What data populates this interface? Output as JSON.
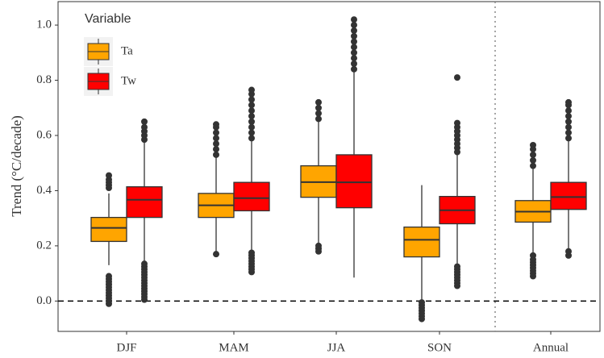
{
  "chart_data": {
    "type": "boxplot",
    "y_label": "Trend (°C/decade)",
    "categories": [
      "DJF",
      "MAM",
      "JJA",
      "SON",
      "Annual"
    ],
    "ylim": [
      -0.11,
      1.085
    ],
    "yticks": [
      {
        "value": 0,
        "label": "0.0"
      },
      0.2,
      0.4,
      0.6,
      0.8,
      {
        "value": 1,
        "label": "1.0"
      }
    ],
    "hline": 0,
    "legend_title": "Variable",
    "legend_position": "top-left",
    "series": [
      {
        "name": "Ta",
        "color": "#ffa500",
        "whislo": [
          0.13,
          0.18,
          0.21,
          0.0,
          0.17
        ],
        "q1": [
          0.216,
          0.303,
          0.376,
          0.16,
          0.286
        ],
        "med": [
          0.265,
          0.347,
          0.431,
          0.222,
          0.324
        ],
        "q3": [
          0.303,
          0.39,
          0.49,
          0.268,
          0.364
        ],
        "whishi": [
          0.39,
          0.52,
          0.65,
          0.42,
          0.48
        ],
        "outliers": [
          [
            -0.01,
            0.0,
            0.01,
            0.02,
            0.03,
            0.04,
            0.05,
            0.06,
            0.07,
            0.08,
            0.09,
            0.41,
            0.42,
            0.43,
            0.44,
            0.455
          ],
          [
            0.17,
            0.53,
            0.55,
            0.57,
            0.59,
            0.61,
            0.63,
            0.64
          ],
          [
            0.18,
            0.19,
            0.2,
            0.66,
            0.68,
            0.7,
            0.72
          ],
          [
            -0.065,
            -0.055,
            -0.045,
            -0.035,
            -0.025,
            -0.015,
            -0.005
          ],
          [
            0.09,
            0.1,
            0.11,
            0.12,
            0.13,
            0.14,
            0.15,
            0.165,
            0.49,
            0.51,
            0.53,
            0.55,
            0.565
          ]
        ]
      },
      {
        "name": "Tw",
        "color": "#ff0000",
        "whislo": [
          0.14,
          0.18,
          0.085,
          0.13,
          0.19
        ],
        "q1": [
          0.303,
          0.327,
          0.338,
          0.28,
          0.332
        ],
        "med": [
          0.367,
          0.373,
          0.43,
          0.329,
          0.377
        ],
        "q3": [
          0.414,
          0.43,
          0.53,
          0.379,
          0.43
        ],
        "whishi": [
          0.58,
          0.58,
          0.83,
          0.53,
          0.58
        ],
        "outliers": [
          [
            0.005,
            0.015,
            0.025,
            0.035,
            0.045,
            0.055,
            0.065,
            0.075,
            0.085,
            0.095,
            0.105,
            0.115,
            0.125,
            0.135,
            0.585,
            0.6,
            0.615,
            0.63,
            0.65
          ],
          [
            0.105,
            0.115,
            0.125,
            0.135,
            0.145,
            0.155,
            0.165,
            0.175,
            0.59,
            0.61,
            0.63,
            0.65,
            0.67,
            0.69,
            0.71,
            0.73,
            0.75,
            0.765
          ],
          [
            0.84,
            0.86,
            0.88,
            0.9,
            0.92,
            0.94,
            0.96,
            0.98,
            1.0,
            1.02
          ],
          [
            0.055,
            0.065,
            0.075,
            0.085,
            0.095,
            0.105,
            0.115,
            0.125,
            0.54,
            0.555,
            0.57,
            0.585,
            0.6,
            0.615,
            0.63,
            0.645,
            0.81
          ],
          [
            0.165,
            0.18,
            0.59,
            0.61,
            0.63,
            0.65,
            0.67,
            0.69,
            0.71,
            0.72
          ]
        ]
      }
    ]
  }
}
